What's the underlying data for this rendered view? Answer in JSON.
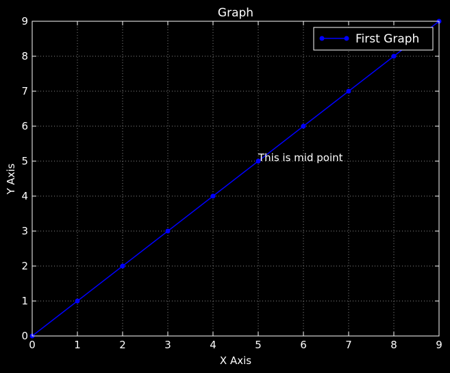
{
  "chart_data": {
    "type": "line",
    "title": "Graph",
    "xlabel": "X Axis",
    "ylabel": "Y Axis",
    "xlim": [
      0,
      9
    ],
    "ylim": [
      0,
      9
    ],
    "x_ticks": [
      "0",
      "1",
      "2",
      "3",
      "4",
      "5",
      "6",
      "7",
      "8",
      "9"
    ],
    "y_ticks": [
      "0",
      "1",
      "2",
      "3",
      "4",
      "5",
      "6",
      "7",
      "8",
      "9"
    ],
    "grid": true,
    "legend_position": "top-right",
    "series": [
      {
        "name": "First Graph",
        "color": "#0000ff",
        "marker": "circle",
        "x": [
          0,
          1,
          2,
          3,
          4,
          5,
          6,
          7,
          8,
          9
        ],
        "y": [
          0,
          1,
          2,
          3,
          4,
          5,
          6,
          7,
          8,
          9
        ]
      }
    ],
    "annotations": [
      {
        "text": "This is mid point",
        "x": 5,
        "y": 5
      }
    ]
  },
  "colors": {
    "background": "#000000",
    "axes": "#ffffff",
    "grid": "#8c8c8c",
    "series": "#0000ff"
  }
}
